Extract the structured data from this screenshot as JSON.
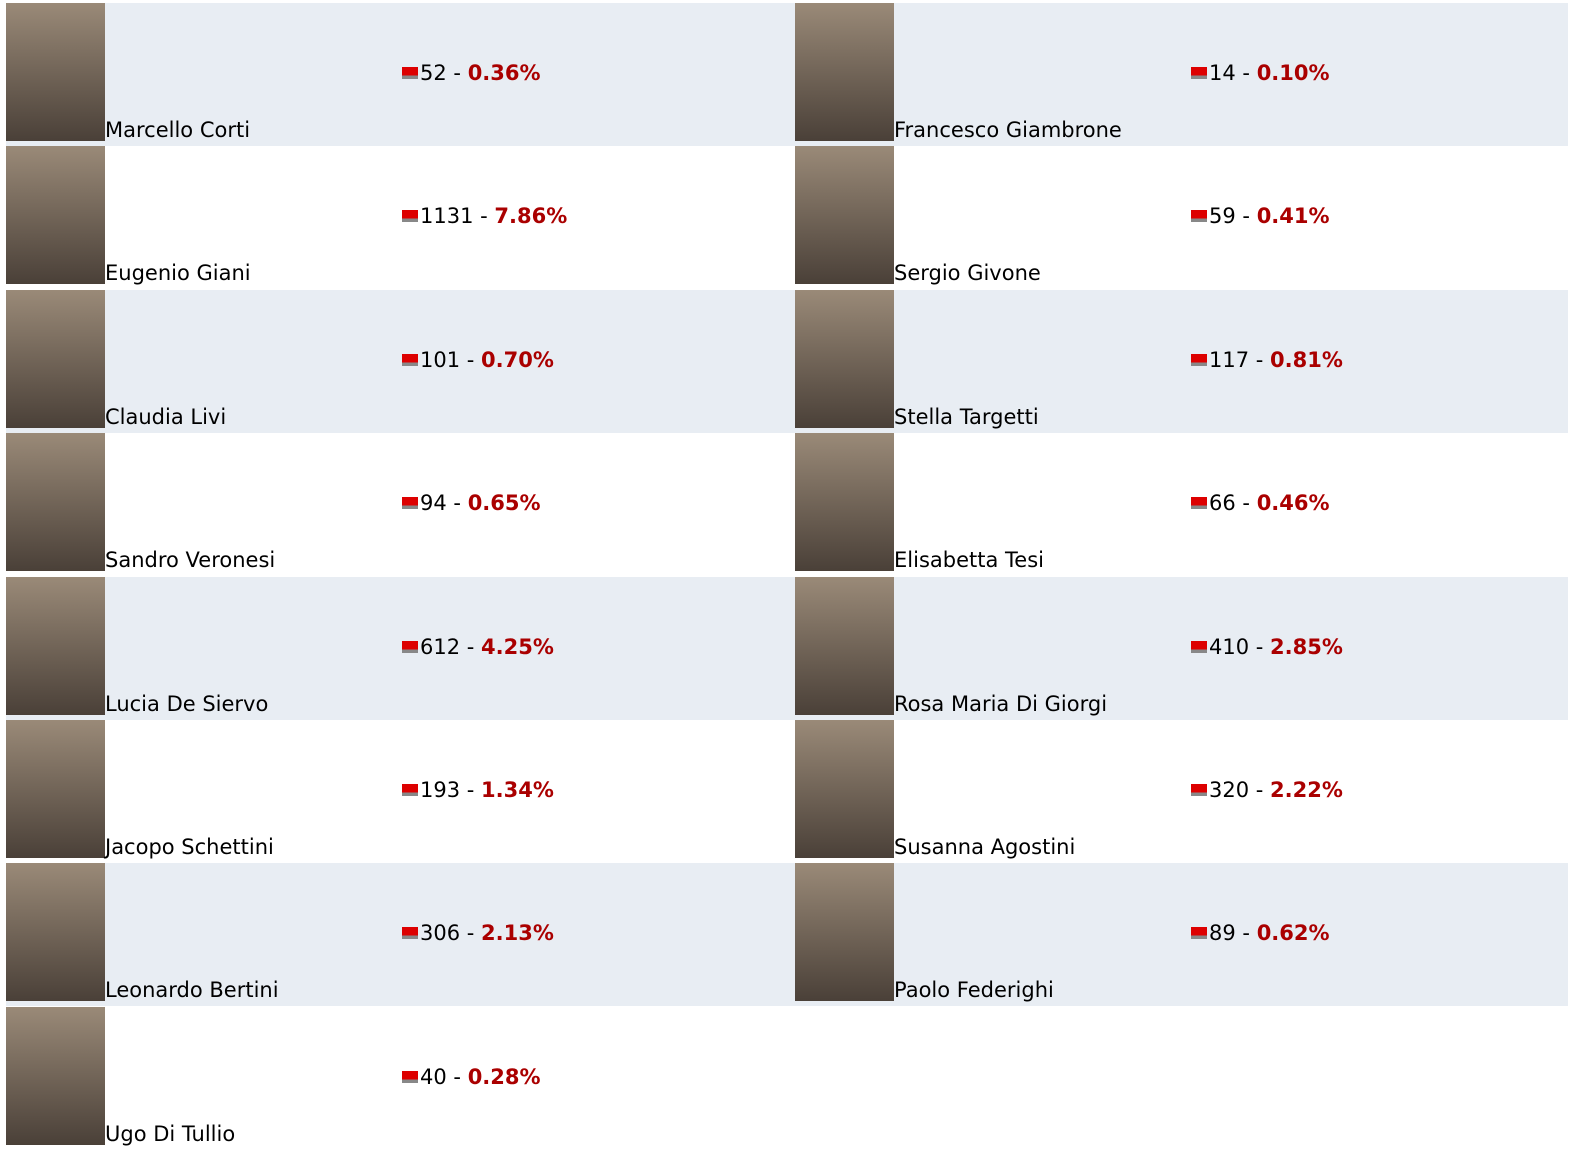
{
  "separator": "-",
  "columns": [
    [
      {
        "name": "Marcello Corti",
        "votes": 52,
        "percent": "0.36%"
      },
      {
        "name": "Eugenio Giani",
        "votes": 1131,
        "percent": "7.86%"
      },
      {
        "name": "Claudia Livi",
        "votes": 101,
        "percent": "0.70%"
      },
      {
        "name": "Sandro Veronesi",
        "votes": 94,
        "percent": "0.65%"
      },
      {
        "name": "Lucia De Siervo",
        "votes": 612,
        "percent": "4.25%"
      },
      {
        "name": "Jacopo Schettini",
        "votes": 193,
        "percent": "1.34%"
      },
      {
        "name": "Leonardo Bertini",
        "votes": 306,
        "percent": "2.13%"
      },
      {
        "name": "Ugo Di Tullio",
        "votes": 40,
        "percent": "0.28%"
      }
    ],
    [
      {
        "name": "Francesco Giambrone",
        "votes": 14,
        "percent": "0.10%"
      },
      {
        "name": "Sergio Givone",
        "votes": 59,
        "percent": "0.41%"
      },
      {
        "name": "Stella Targetti",
        "votes": 117,
        "percent": "0.81%"
      },
      {
        "name": "Elisabetta Tesi",
        "votes": 66,
        "percent": "0.46%"
      },
      {
        "name": "Rosa Maria Di Giorgi",
        "votes": 410,
        "percent": "2.85%"
      },
      {
        "name": "Susanna Agostini",
        "votes": 320,
        "percent": "2.22%"
      },
      {
        "name": "Paolo Federighi",
        "votes": 89,
        "percent": "0.62%"
      }
    ]
  ]
}
